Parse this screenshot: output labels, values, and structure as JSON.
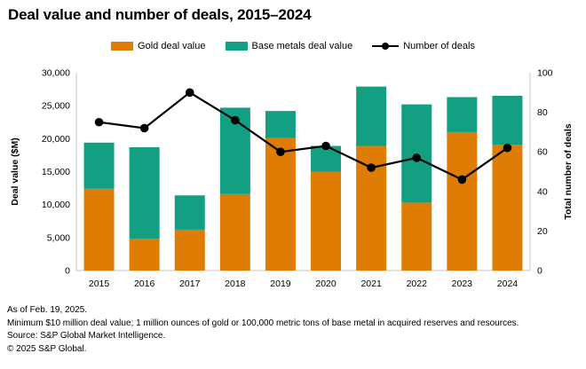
{
  "title": "Deal value and number of deals, 2015–2024",
  "legend": [
    {
      "label": "Gold deal value",
      "color": "#de7c04"
    },
    {
      "label": "Base metals deal value",
      "color": "#129f82"
    },
    {
      "label": "Number of deals",
      "color": "#000000"
    }
  ],
  "chart_data": {
    "type": "bar",
    "subtype": "stacked bars with right-axis line overlay",
    "categories": [
      "2015",
      "2016",
      "2017",
      "2018",
      "2019",
      "2020",
      "2021",
      "2022",
      "2023",
      "2024"
    ],
    "series": [
      {
        "name": "Gold deal value",
        "type": "bar",
        "stack": true,
        "color": "#de7c04",
        "values": [
          12400,
          4800,
          6200,
          11600,
          20100,
          15000,
          18900,
          10300,
          21000,
          19100
        ]
      },
      {
        "name": "Base metals deal value",
        "type": "bar",
        "stack": true,
        "color": "#129f82",
        "values": [
          7000,
          13900,
          5200,
          13100,
          4100,
          3900,
          9000,
          14900,
          5300,
          7400
        ]
      },
      {
        "name": "Number of deals",
        "type": "line",
        "axis": "right",
        "color": "#000000",
        "values": [
          75,
          72,
          90,
          76,
          60,
          63,
          52,
          57,
          46,
          62
        ]
      }
    ],
    "left_axis": {
      "label": "Deal value ($M)",
      "min": 0,
      "max": 30000,
      "step": 5000,
      "tick_labels": [
        "0",
        "5,000",
        "10,000",
        "15,000",
        "20,000",
        "25,000",
        "30,000"
      ]
    },
    "right_axis": {
      "label": "Total number of deals",
      "min": 0,
      "max": 100,
      "step": 20,
      "tick_labels": [
        "0",
        "20",
        "40",
        "60",
        "80",
        "100"
      ]
    },
    "grid": false,
    "legend_position": "top",
    "axis_line_color": "#c4c4c4"
  },
  "footer": {
    "lines": [
      "As of Feb. 19, 2025.",
      "Minimum $10 million deal value; 1 million ounces of gold or 100,000 metric tons of base metal in acquired reserves and resources.",
      "Source: S&P Global Market Intelligence.",
      "© 2025 S&P Global."
    ]
  }
}
